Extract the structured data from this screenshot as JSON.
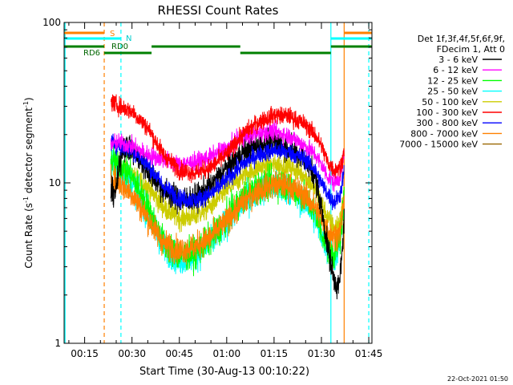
{
  "chart_data": {
    "type": "line",
    "title": "RHESSI Count Rates",
    "xlabel": "Start Time (30-Aug-13 00:10:22)",
    "ylabel_main": "Count Rate (s",
    "ylabel_exp1": "-1",
    "ylabel_mid": " detector segment",
    "ylabel_exp2": "-1",
    "ylabel_end": ")",
    "y_scale": "log",
    "ylim": [
      1,
      100
    ],
    "y_ticks": [
      {
        "value": 1,
        "label": "1"
      },
      {
        "value": 10,
        "label": "10"
      },
      {
        "value": 100,
        "label": "100"
      }
    ],
    "xlim_min": [
      8.5,
      106
    ],
    "x_ticks": [
      {
        "min": 15,
        "label": "00:15"
      },
      {
        "min": 30,
        "label": "00:30"
      },
      {
        "min": 45,
        "label": "00:45"
      },
      {
        "min": 60,
        "label": "01:00"
      },
      {
        "min": 75,
        "label": "01:15"
      },
      {
        "min": 90,
        "label": "01:30"
      },
      {
        "min": 105,
        "label": "01:45"
      }
    ],
    "legend": {
      "placement": "right",
      "header": [
        "Det 1f,3f,4f,5f,6f,9f,",
        "FDecim 1, Att 0"
      ],
      "entries": [
        {
          "name": "3 - 6 keV",
          "color": "#000000"
        },
        {
          "name": "6 - 12 keV",
          "color": "#ff00ff"
        },
        {
          "name": "12 - 25 keV",
          "color": "#00ff00"
        },
        {
          "name": "25 - 50 keV",
          "color": "#00ffff"
        },
        {
          "name": "50 - 100 keV",
          "color": "#cccc00"
        },
        {
          "name": "100 - 300 keV",
          "color": "#ff0000"
        },
        {
          "name": "300 - 800 keV",
          "color": "#0000ff"
        },
        {
          "name": "800 - 7000 keV",
          "color": "#ff8000"
        },
        {
          "name": "7000 - 15000 keV",
          "color": "#996600"
        }
      ]
    },
    "attenuator_labels": [
      {
        "text": "S",
        "color": "#ff8000"
      },
      {
        "text": "N",
        "color": "#00cccc"
      },
      {
        "text": "RD0",
        "color": "#006600"
      },
      {
        "text": "RD6",
        "color": "#006600"
      }
    ],
    "state_bars": [
      {
        "name": "saa",
        "color": "#ff8000",
        "segments": [
          [
            8.5,
            21.2
          ],
          [
            97.2,
            106
          ]
        ]
      },
      {
        "name": "night",
        "color": "#00ffff",
        "segments": [
          [
            8.5,
            26.5
          ],
          [
            93,
            106
          ]
        ]
      },
      {
        "name": "decim-upper",
        "color": "#008000",
        "segments": [
          [
            8.5,
            21.2
          ],
          [
            36.2,
            64.3
          ],
          [
            93,
            106
          ]
        ]
      },
      {
        "name": "decim-lower",
        "color": "#008000",
        "segments": [
          [
            21.2,
            36.2
          ],
          [
            64.3,
            93
          ]
        ]
      }
    ],
    "markers": [
      {
        "min": 8.8,
        "color": "#00ffff",
        "style": "solid"
      },
      {
        "min": 21.2,
        "color": "#ff8000",
        "style": "dashed"
      },
      {
        "min": 26.5,
        "color": "#00ffff",
        "style": "dashed"
      },
      {
        "min": 93.0,
        "color": "#00ffff",
        "style": "solid"
      },
      {
        "min": 97.2,
        "color": "#ff8000",
        "style": "solid"
      },
      {
        "min": 105.0,
        "color": "#00ffff",
        "style": "dashed"
      }
    ],
    "data_range_min": [
      23.3,
      97.2
    ],
    "series": [
      {
        "name": "3 - 6 keV",
        "color": "#000000",
        "noise": 0.06,
        "profile": [
          [
            23.3,
            8.5
          ],
          [
            25,
            8.9
          ],
          [
            27,
            17
          ],
          [
            30,
            16
          ],
          [
            35,
            12
          ],
          [
            40,
            9
          ],
          [
            45,
            7.8
          ],
          [
            50,
            8.0
          ],
          [
            55,
            9.5
          ],
          [
            60,
            12.5
          ],
          [
            65,
            15.5
          ],
          [
            70,
            17
          ],
          [
            75,
            18
          ],
          [
            80,
            16.5
          ],
          [
            85,
            14
          ],
          [
            88,
            11
          ],
          [
            90,
            7
          ],
          [
            92,
            4
          ],
          [
            94,
            2.5
          ],
          [
            95.5,
            2.2
          ],
          [
            96.5,
            3.5
          ],
          [
            97.2,
            6
          ]
        ]
      },
      {
        "name": "6 - 12 keV",
        "color": "#ff00ff",
        "noise": 0.04,
        "profile": [
          [
            23.3,
            17
          ],
          [
            25,
            18
          ],
          [
            30,
            17
          ],
          [
            35,
            15
          ],
          [
            40,
            14
          ],
          [
            45,
            13
          ],
          [
            50,
            13.5
          ],
          [
            55,
            14.5
          ],
          [
            60,
            16.5
          ],
          [
            65,
            19
          ],
          [
            70,
            20.5
          ],
          [
            75,
            21
          ],
          [
            80,
            19.5
          ],
          [
            85,
            17
          ],
          [
            88,
            15
          ],
          [
            90,
            13
          ],
          [
            92,
            11
          ],
          [
            94,
            10
          ],
          [
            96,
            11
          ],
          [
            97.2,
            15
          ]
        ]
      },
      {
        "name": "12 - 25 keV",
        "color": "#00ff00",
        "noise": 0.07,
        "profile": [
          [
            23.3,
            14
          ],
          [
            26,
            13
          ],
          [
            30,
            11
          ],
          [
            35,
            7
          ],
          [
            40,
            4.2
          ],
          [
            45,
            3.5
          ],
          [
            50,
            3.7
          ],
          [
            55,
            4.5
          ],
          [
            60,
            6
          ],
          [
            65,
            8
          ],
          [
            70,
            9.5
          ],
          [
            75,
            10
          ],
          [
            80,
            9.5
          ],
          [
            85,
            8
          ],
          [
            88,
            6.5
          ],
          [
            90,
            5
          ],
          [
            92,
            4
          ],
          [
            94,
            3.6
          ],
          [
            96,
            4.5
          ],
          [
            97.2,
            8
          ]
        ]
      },
      {
        "name": "25 - 50 keV",
        "color": "#00ffff",
        "noise": 0.07,
        "profile": [
          [
            23.3,
            13
          ],
          [
            26,
            12
          ],
          [
            30,
            10
          ],
          [
            35,
            6.5
          ],
          [
            40,
            4.0
          ],
          [
            45,
            3.3
          ],
          [
            50,
            3.5
          ],
          [
            55,
            4.2
          ],
          [
            60,
            5.6
          ],
          [
            65,
            7.5
          ],
          [
            70,
            9
          ],
          [
            75,
            9.5
          ],
          [
            80,
            9
          ],
          [
            85,
            7.5
          ],
          [
            88,
            6
          ],
          [
            90,
            4.8
          ],
          [
            92,
            3.9
          ],
          [
            94,
            3.4
          ],
          [
            96,
            4.2
          ],
          [
            97.2,
            7.5
          ]
        ]
      },
      {
        "name": "50 - 100 keV",
        "color": "#cccc00",
        "noise": 0.05,
        "profile": [
          [
            23.3,
            13
          ],
          [
            26,
            12
          ],
          [
            30,
            11
          ],
          [
            35,
            9.5
          ],
          [
            40,
            7
          ],
          [
            45,
            6
          ],
          [
            50,
            6.2
          ],
          [
            55,
            7.2
          ],
          [
            60,
            9
          ],
          [
            65,
            11
          ],
          [
            70,
            12.5
          ],
          [
            75,
            13
          ],
          [
            80,
            12.5
          ],
          [
            85,
            11
          ],
          [
            88,
            9
          ],
          [
            90,
            7.5
          ],
          [
            92,
            6
          ],
          [
            94,
            5.2
          ],
          [
            96,
            5.8
          ],
          [
            97.2,
            9
          ]
        ]
      },
      {
        "name": "100 - 300 keV",
        "color": "#ff0000",
        "noise": 0.04,
        "profile": [
          [
            23.3,
            32
          ],
          [
            26,
            30
          ],
          [
            30,
            28
          ],
          [
            35,
            22
          ],
          [
            40,
            15
          ],
          [
            45,
            12
          ],
          [
            50,
            11.5
          ],
          [
            55,
            12.5
          ],
          [
            60,
            15
          ],
          [
            65,
            20
          ],
          [
            70,
            24
          ],
          [
            75,
            26.5
          ],
          [
            80,
            26
          ],
          [
            85,
            23
          ],
          [
            88,
            20
          ],
          [
            90,
            17
          ],
          [
            92,
            13.5
          ],
          [
            94,
            12
          ],
          [
            96,
            12.5
          ],
          [
            97.2,
            16
          ]
        ]
      },
      {
        "name": "300 - 800 keV",
        "color": "#0000ff",
        "noise": 0.04,
        "profile": [
          [
            23.3,
            18
          ],
          [
            26,
            17
          ],
          [
            30,
            16
          ],
          [
            35,
            13
          ],
          [
            40,
            9.5
          ],
          [
            45,
            8
          ],
          [
            50,
            7.8
          ],
          [
            55,
            8.5
          ],
          [
            60,
            10.5
          ],
          [
            65,
            13
          ],
          [
            70,
            15
          ],
          [
            75,
            16
          ],
          [
            80,
            15.5
          ],
          [
            85,
            14
          ],
          [
            88,
            12
          ],
          [
            90,
            10
          ],
          [
            92,
            8.5
          ],
          [
            94,
            7.5
          ],
          [
            96,
            8.5
          ],
          [
            97.2,
            12
          ]
        ]
      },
      {
        "name": "800 - 7000 keV",
        "color": "#ff8000",
        "noise": 0.06,
        "profile": [
          [
            23.3,
            10.5
          ],
          [
            26,
            10
          ],
          [
            30,
            8.5
          ],
          [
            35,
            6
          ],
          [
            40,
            4.2
          ],
          [
            45,
            3.8
          ],
          [
            50,
            4.0
          ],
          [
            55,
            4.6
          ],
          [
            60,
            5.8
          ],
          [
            65,
            7.5
          ],
          [
            70,
            9
          ],
          [
            75,
            9.8
          ],
          [
            80,
            9.5
          ],
          [
            85,
            8.3
          ],
          [
            88,
            7
          ],
          [
            90,
            6
          ],
          [
            92,
            5
          ],
          [
            94,
            4.6
          ],
          [
            96,
            5
          ],
          [
            97.2,
            8
          ]
        ]
      }
    ]
  },
  "footer_timestamp": "22-Oct-2021 01:50"
}
